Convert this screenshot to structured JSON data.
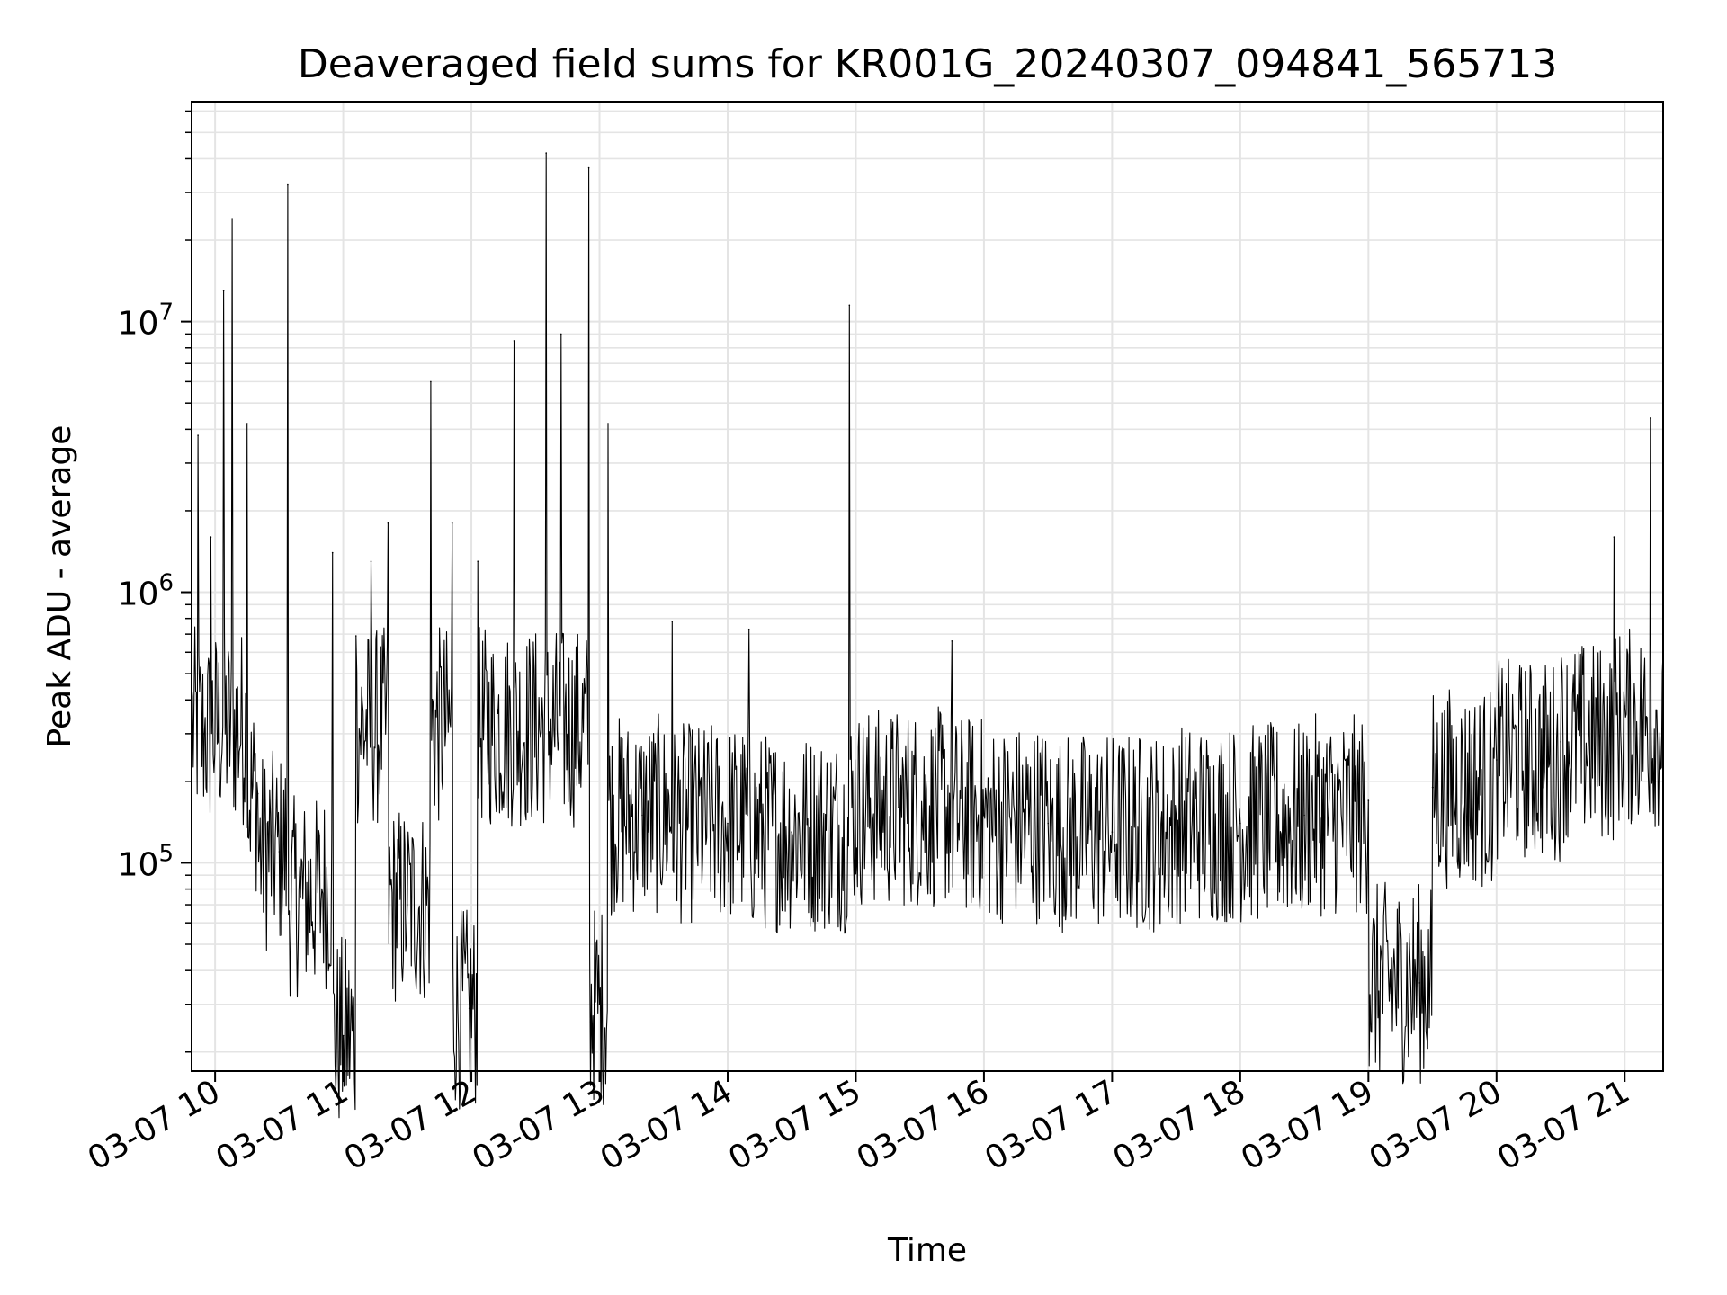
{
  "chart_data": {
    "type": "line",
    "title": "Deaveraged field sums for KR001G_20240307_094841_565713",
    "xlabel": "Time",
    "ylabel": "Peak ADU - average",
    "y_scale": "log",
    "ylim": [
      17000,
      65000000
    ],
    "xlim": [
      "2024-03-07 09:49",
      "2024-03-07 21:18"
    ],
    "grid": true,
    "x_ticks": [
      "03-07 10",
      "03-07 11",
      "03-07 12",
      "03-07 13",
      "03-07 14",
      "03-07 15",
      "03-07 16",
      "03-07 17",
      "03-07 18",
      "03-07 19",
      "03-07 20",
      "03-07 21"
    ],
    "y_ticks": [
      {
        "base": "10",
        "exp": "5"
      },
      {
        "base": "10",
        "exp": "6"
      },
      {
        "base": "10",
        "exp": "7"
      }
    ],
    "series": [
      {
        "color": "#000000",
        "points": [
          [
            "2024-03-07 09:49",
            450000
          ],
          [
            "2024-03-07 09:52",
            3800000
          ],
          [
            "2024-03-07 09:55",
            300000
          ],
          [
            "2024-03-07 09:58",
            1600000
          ],
          [
            "2024-03-07 10:04",
            13000000
          ],
          [
            "2024-03-07 10:08",
            24000000
          ],
          [
            "2024-03-07 10:15",
            4200000
          ],
          [
            "2024-03-07 10:20",
            180000
          ],
          [
            "2024-03-07 10:30",
            110000
          ],
          [
            "2024-03-07 10:34",
            32000000
          ],
          [
            "2024-03-07 10:40",
            75000
          ],
          [
            "2024-03-07 10:50",
            80000
          ],
          [
            "2024-03-07 10:55",
            1400000
          ],
          [
            "2024-03-07 11:00",
            23000
          ],
          [
            "2024-03-07 11:06",
            690000
          ],
          [
            "2024-03-07 11:13",
            1300000
          ],
          [
            "2024-03-07 11:21",
            1800000
          ],
          [
            "2024-03-07 11:30",
            70000
          ],
          [
            "2024-03-07 11:41",
            6000000
          ],
          [
            "2024-03-07 11:51",
            1800000
          ],
          [
            "2024-03-07 11:59",
            29000
          ],
          [
            "2024-03-07 12:03",
            1300000
          ],
          [
            "2024-03-07 12:20",
            8500000
          ],
          [
            "2024-03-07 12:35",
            42000000
          ],
          [
            "2024-03-07 12:42",
            9000000
          ],
          [
            "2024-03-07 12:55",
            37000000
          ],
          [
            "2024-03-07 13:00",
            30000
          ],
          [
            "2024-03-07 13:04",
            4200000
          ],
          [
            "2024-03-07 13:20",
            150000
          ],
          [
            "2024-03-07 13:34",
            780000
          ],
          [
            "2024-03-07 14:00",
            140000
          ],
          [
            "2024-03-07 14:10",
            730000
          ],
          [
            "2024-03-07 14:30",
            130000
          ],
          [
            "2024-03-07 14:57",
            11500000
          ],
          [
            "2024-03-07 15:20",
            160000
          ],
          [
            "2024-03-07 15:45",
            660000
          ],
          [
            "2024-03-07 16:00",
            150000
          ],
          [
            "2024-03-07 16:30",
            140000
          ],
          [
            "2024-03-07 17:00",
            130000
          ],
          [
            "2024-03-07 17:30",
            150000
          ],
          [
            "2024-03-07 18:00",
            140000
          ],
          [
            "2024-03-07 18:30",
            150000
          ],
          [
            "2024-03-07 19:00",
            170000
          ],
          [
            "2024-03-07 19:24",
            36000
          ],
          [
            "2024-03-07 19:30",
            190000
          ],
          [
            "2024-03-07 20:00",
            240000
          ],
          [
            "2024-03-07 20:30",
            280000
          ],
          [
            "2024-03-07 20:55",
            1600000
          ],
          [
            "2024-03-07 21:00",
            380000
          ],
          [
            "2024-03-07 21:12",
            4400000
          ],
          [
            "2024-03-07 21:18",
            600000
          ]
        ]
      }
    ]
  }
}
